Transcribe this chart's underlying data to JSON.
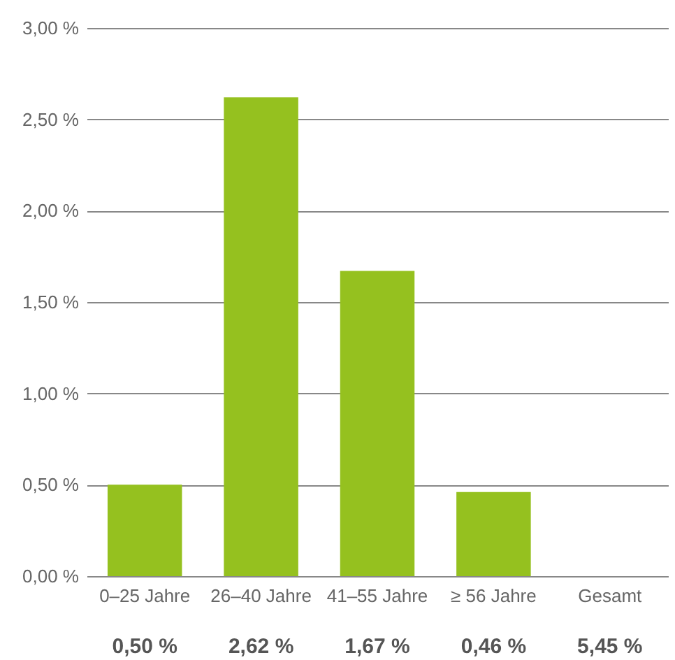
{
  "chart_data": {
    "type": "bar",
    "categories": [
      "0–25 Jahre",
      "26–40 Jahre",
      "41–55 Jahre",
      "≥ 56 Jahre",
      "Gesamt"
    ],
    "values": [
      0.5,
      2.62,
      1.67,
      0.46,
      null
    ],
    "value_labels": [
      "0,50 %",
      "2,62 %",
      "1,67 %",
      "0,46 %",
      "5,45 %"
    ],
    "color": "#95c11f",
    "ylim": [
      0,
      3
    ],
    "yticks": [
      {
        "value": 0,
        "label": "0,00 %"
      },
      {
        "value": 0.5,
        "label": "0,50 %"
      },
      {
        "value": 1,
        "label": "1,00 %"
      },
      {
        "value": 1.5,
        "label": "1,50 %"
      },
      {
        "value": 2,
        "label": "2,00 %"
      },
      {
        "value": 2.5,
        "label": "2,50 %"
      },
      {
        "value": 3,
        "label": "3,00 %"
      }
    ],
    "grid": "y"
  }
}
